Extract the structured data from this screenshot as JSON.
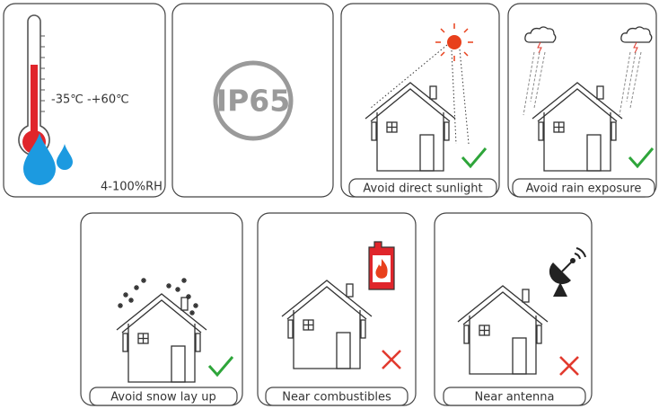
{
  "temperature": {
    "range": "-35℃ -+60℃",
    "humidity": "4-100%RH"
  },
  "ip_rating": "IP65",
  "conditions": [
    {
      "label": "Avoid direct sunlight"
    },
    {
      "label": "Avoid rain exposure"
    },
    {
      "label": "Avoid snow lay up"
    },
    {
      "label": "Near combustibles"
    },
    {
      "label": "Near antenna"
    }
  ]
}
